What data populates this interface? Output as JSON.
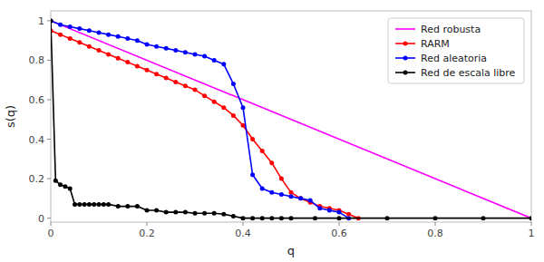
{
  "chart_data": {
    "type": "line",
    "xlabel": "q",
    "ylabel": "s(q)",
    "xlim": [
      0.0,
      1.0
    ],
    "ylim": [
      -0.02,
      1.05
    ],
    "xticks": [
      0,
      0.2,
      0.4,
      0.6,
      0.8,
      1
    ],
    "yticks": [
      0,
      0.2,
      0.4,
      0.6,
      0.8,
      1
    ],
    "grid": false,
    "legend": "upper-right",
    "series": [
      {
        "name": "Red robusta",
        "color": "#ff00ff",
        "line_style": "solid",
        "marker": "none",
        "x": [
          0.0,
          1.0
        ],
        "values": [
          1.0,
          0.0
        ]
      },
      {
        "name": "RARM",
        "color": "#ff0000",
        "line_style": "solid",
        "marker": "circle",
        "x": [
          0.0,
          0.02,
          0.04,
          0.06,
          0.08,
          0.1,
          0.12,
          0.14,
          0.16,
          0.18,
          0.2,
          0.22,
          0.24,
          0.26,
          0.28,
          0.3,
          0.32,
          0.34,
          0.36,
          0.38,
          0.4,
          0.42,
          0.44,
          0.46,
          0.48,
          0.5,
          0.52,
          0.54,
          0.56,
          0.58,
          0.6,
          0.62,
          0.64
        ],
        "values": [
          0.95,
          0.93,
          0.91,
          0.89,
          0.87,
          0.85,
          0.83,
          0.81,
          0.79,
          0.77,
          0.75,
          0.73,
          0.71,
          0.69,
          0.67,
          0.65,
          0.62,
          0.59,
          0.56,
          0.52,
          0.47,
          0.4,
          0.34,
          0.28,
          0.2,
          0.13,
          0.1,
          0.08,
          0.06,
          0.05,
          0.04,
          0.02,
          0.0
        ]
      },
      {
        "name": "Red aleatoria",
        "color": "#0000ff",
        "line_style": "solid",
        "marker": "circle",
        "x": [
          0.0,
          0.02,
          0.04,
          0.06,
          0.08,
          0.1,
          0.12,
          0.14,
          0.16,
          0.18,
          0.2,
          0.22,
          0.24,
          0.26,
          0.28,
          0.3,
          0.32,
          0.34,
          0.36,
          0.38,
          0.4,
          0.42,
          0.44,
          0.46,
          0.48,
          0.5,
          0.52,
          0.54,
          0.56,
          0.58,
          0.6,
          0.62
        ],
        "values": [
          1.0,
          0.98,
          0.97,
          0.96,
          0.95,
          0.94,
          0.93,
          0.92,
          0.91,
          0.9,
          0.88,
          0.87,
          0.86,
          0.85,
          0.84,
          0.83,
          0.82,
          0.8,
          0.78,
          0.68,
          0.56,
          0.22,
          0.15,
          0.13,
          0.12,
          0.11,
          0.1,
          0.09,
          0.05,
          0.04,
          0.03,
          0.0
        ]
      },
      {
        "name": "Red de escala libre",
        "color": "#000000",
        "line_style": "solid",
        "marker": "circle",
        "x": [
          0.0,
          0.01,
          0.02,
          0.03,
          0.04,
          0.05,
          0.06,
          0.07,
          0.08,
          0.09,
          0.1,
          0.11,
          0.12,
          0.14,
          0.16,
          0.18,
          0.2,
          0.22,
          0.24,
          0.26,
          0.28,
          0.3,
          0.32,
          0.34,
          0.36,
          0.38,
          0.4,
          0.42,
          0.44,
          0.46,
          0.48,
          0.5,
          0.55,
          0.6,
          0.7,
          0.8,
          0.9,
          1.0
        ],
        "values": [
          1.0,
          0.19,
          0.17,
          0.16,
          0.15,
          0.07,
          0.07,
          0.07,
          0.07,
          0.07,
          0.07,
          0.07,
          0.07,
          0.06,
          0.06,
          0.06,
          0.04,
          0.04,
          0.03,
          0.03,
          0.03,
          0.025,
          0.025,
          0.025,
          0.02,
          0.01,
          0.0,
          0.0,
          0.0,
          0.0,
          0.0,
          0.0,
          0.0,
          0.0,
          0.0,
          0.0,
          0.0,
          0.0
        ]
      }
    ]
  }
}
